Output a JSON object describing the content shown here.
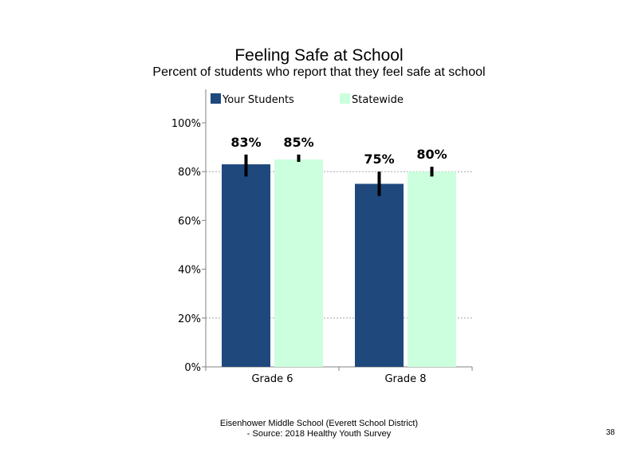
{
  "chart_data": {
    "type": "bar",
    "title": "Feeling  Safe at School",
    "subtitle": "Percent of students who report that they feel safe at school",
    "categories": [
      "Grade 6",
      "Grade 8"
    ],
    "series": [
      {
        "name": "Your Students",
        "color": "#1f497d",
        "values": [
          83,
          75
        ],
        "labels": [
          "83%",
          "75%"
        ],
        "error_low": [
          78,
          70
        ],
        "error_high": [
          87,
          80
        ]
      },
      {
        "name": "Statewide",
        "color": "#ccffdd",
        "values": [
          85,
          80
        ],
        "labels": [
          "85%",
          "80%"
        ],
        "error_low": [
          84,
          78
        ],
        "error_high": [
          87,
          82
        ]
      }
    ],
    "ylim": [
      0,
      100
    ],
    "yticks": [
      0,
      20,
      40,
      60,
      80,
      100
    ],
    "ytick_labels": [
      "0%",
      "20%",
      "40%",
      "60%",
      "80%",
      "100%"
    ],
    "gridlines": [
      20,
      80
    ],
    "grid_style": "dotted",
    "legend_position": "top",
    "xlabel": "",
    "ylabel": ""
  },
  "footer": {
    "line1": "Eisenhower Middle School (Everett School District)",
    "line2": "- Source: 2018 Healthy  Youth Survey"
  },
  "page_number": "38"
}
